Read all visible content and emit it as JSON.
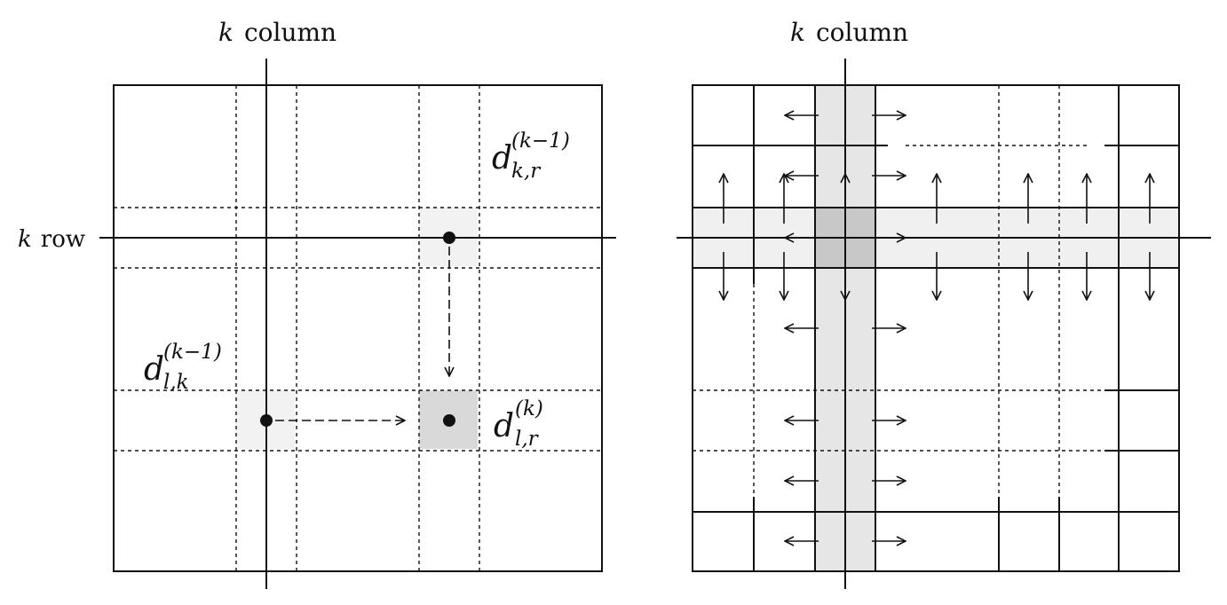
{
  "left_panel": {
    "column_label": {
      "var": "k",
      "word": "column"
    },
    "row_label": {
      "var": "k",
      "word": "row"
    },
    "d_kr": {
      "base": "d",
      "sup": "(k−1)",
      "sub": "k,r"
    },
    "d_lk": {
      "base": "d",
      "sup": "(k−1)",
      "sub": "l,k"
    },
    "d_lr": {
      "base": "d",
      "sup": "(k)",
      "sub": "l,r"
    }
  },
  "right_panel": {
    "column_label": {
      "var": "k",
      "word": "column"
    }
  },
  "colors": {
    "stroke": "#111111",
    "light_shade": "#f2f2f2",
    "mid_shade": "#e6e6e6",
    "dark_shade": "#d9d9d9",
    "pivot_shade": "#c8c8c8"
  }
}
